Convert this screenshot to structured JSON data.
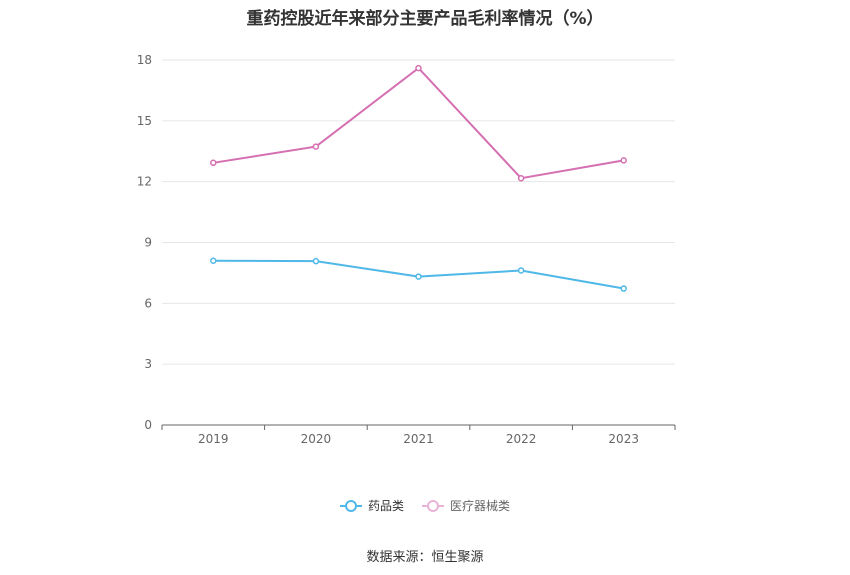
{
  "chart_data": {
    "type": "line",
    "title": "重药控股近年来部分主要产品毛利率情况（%）",
    "categories": [
      "2019",
      "2020",
      "2021",
      "2022",
      "2023"
    ],
    "series": [
      {
        "name": "药品类",
        "color": "#4fb8e8",
        "values": [
          8.1,
          8.08,
          7.32,
          7.62,
          6.73
        ]
      },
      {
        "name": "医疗器械类",
        "color": "#d56fb1",
        "values": [
          12.93,
          13.73,
          17.6,
          12.17,
          13.05
        ]
      }
    ],
    "yticks": [
      0,
      3,
      6,
      9,
      12,
      15,
      18
    ],
    "ylim": [
      0,
      18
    ],
    "grid": true,
    "legend_position": "bottom"
  },
  "source": "数据来源：恒生聚源"
}
